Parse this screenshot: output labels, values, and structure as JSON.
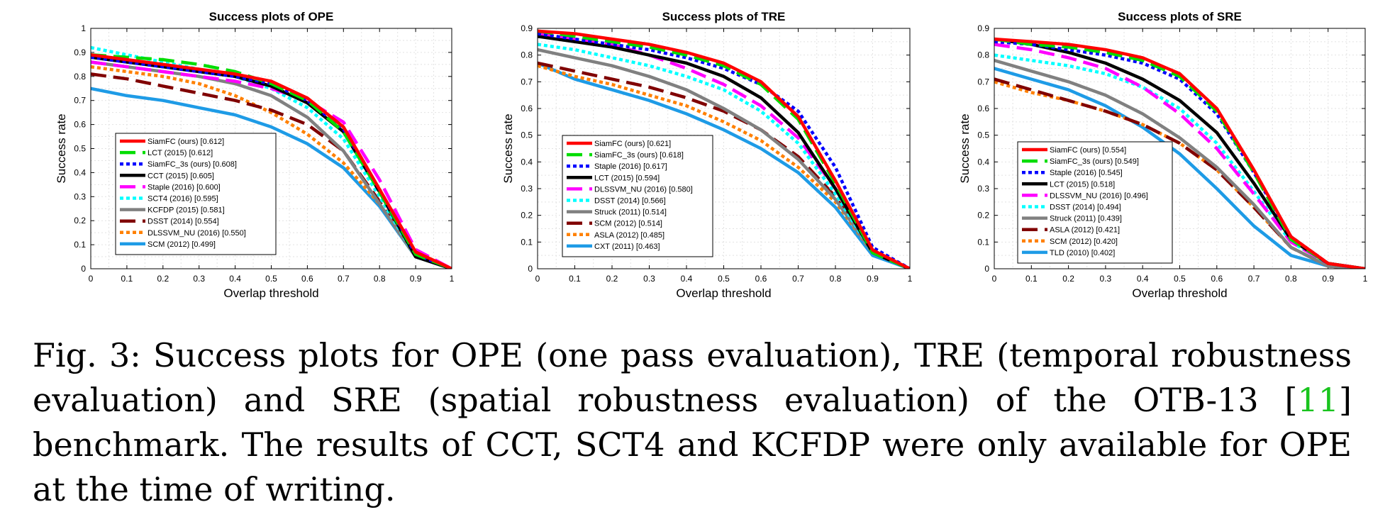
{
  "chart_data": [
    {
      "type": "line",
      "title": "Success plots of OPE",
      "xlabel": "Overlap threshold",
      "ylabel": "Success rate",
      "xlim": [
        0,
        1
      ],
      "ylim": [
        0,
        1
      ],
      "xticks": [
        "0",
        "0.1",
        "0.2",
        "0.3",
        "0.4",
        "0.5",
        "0.6",
        "0.7",
        "0.8",
        "0.9",
        "1"
      ],
      "yticks": [
        "0",
        "0.1",
        "0.2",
        "0.3",
        "0.4",
        "0.5",
        "0.6",
        "0.7",
        "0.8",
        "0.9",
        "1"
      ],
      "grid": true,
      "legend_position": "lower-left",
      "x": [
        0,
        0.1,
        0.2,
        0.3,
        0.4,
        0.5,
        0.6,
        0.7,
        0.8,
        0.9,
        1.0
      ],
      "series": [
        {
          "name": "SiamFC (ours) [0.612]",
          "color": "#ff0000",
          "dash": "solid",
          "values": [
            0.89,
            0.87,
            0.85,
            0.83,
            0.81,
            0.78,
            0.71,
            0.59,
            0.33,
            0.07,
            0.0
          ]
        },
        {
          "name": "LCT (2015) [0.612]",
          "color": "#00dd00",
          "dash": "dashed",
          "values": [
            0.89,
            0.88,
            0.87,
            0.85,
            0.82,
            0.77,
            0.7,
            0.57,
            0.32,
            0.06,
            0.0
          ]
        },
        {
          "name": "SiamFC_3s (ours) [0.608]",
          "color": "#0000ff",
          "dash": "dotted",
          "values": [
            0.88,
            0.86,
            0.84,
            0.82,
            0.8,
            0.77,
            0.7,
            0.58,
            0.33,
            0.06,
            0.0
          ]
        },
        {
          "name": "CCT (2015) [0.605]",
          "color": "#000000",
          "dash": "solid",
          "values": [
            0.88,
            0.86,
            0.84,
            0.82,
            0.8,
            0.76,
            0.69,
            0.57,
            0.32,
            0.05,
            0.0
          ]
        },
        {
          "name": "Staple (2016) [0.600]",
          "color": "#ff00ff",
          "dash": "dashed",
          "values": [
            0.86,
            0.84,
            0.82,
            0.8,
            0.78,
            0.75,
            0.7,
            0.61,
            0.37,
            0.08,
            0.0
          ]
        },
        {
          "name": "SCT4 (2016) [0.595]",
          "color": "#00ffff",
          "dash": "dotted",
          "values": [
            0.92,
            0.89,
            0.86,
            0.83,
            0.8,
            0.75,
            0.67,
            0.54,
            0.3,
            0.05,
            0.0
          ]
        },
        {
          "name": "KCFDP (2015) [0.581]",
          "color": "#808080",
          "dash": "solid",
          "values": [
            0.86,
            0.84,
            0.82,
            0.8,
            0.77,
            0.72,
            0.63,
            0.49,
            0.27,
            0.05,
            0.0
          ]
        },
        {
          "name": "DSST (2014) [0.554]",
          "color": "#800000",
          "dash": "dashed",
          "values": [
            0.81,
            0.79,
            0.76,
            0.73,
            0.7,
            0.66,
            0.6,
            0.49,
            0.28,
            0.05,
            0.0
          ]
        },
        {
          "name": "DLSSVM_NU (2016) [0.550]",
          "color": "#ff8000",
          "dash": "dotted",
          "values": [
            0.84,
            0.82,
            0.8,
            0.77,
            0.72,
            0.65,
            0.56,
            0.44,
            0.27,
            0.05,
            0.0
          ]
        },
        {
          "name": "SCM (2012) [0.499]",
          "color": "#1e9be6",
          "dash": "solid",
          "values": [
            0.75,
            0.72,
            0.7,
            0.67,
            0.64,
            0.59,
            0.52,
            0.42,
            0.26,
            0.05,
            0.0
          ]
        }
      ]
    },
    {
      "type": "line",
      "title": "Success plots of TRE",
      "xlabel": "Overlap threshold",
      "ylabel": "Success rate",
      "xlim": [
        0,
        1
      ],
      "ylim": [
        0,
        0.9
      ],
      "xticks": [
        "0",
        "0.1",
        "0.2",
        "0.3",
        "0.4",
        "0.5",
        "0.6",
        "0.7",
        "0.8",
        "0.9",
        "1"
      ],
      "yticks": [
        "0",
        "0.1",
        "0.2",
        "0.3",
        "0.4",
        "0.5",
        "0.6",
        "0.7",
        "0.8",
        "0.9"
      ],
      "grid": true,
      "legend_position": "lower-left",
      "x": [
        0,
        0.1,
        0.2,
        0.3,
        0.4,
        0.5,
        0.6,
        0.7,
        0.8,
        0.9,
        1.0
      ],
      "series": [
        {
          "name": "SiamFC (ours) [0.621]",
          "color": "#ff0000",
          "dash": "solid",
          "values": [
            0.89,
            0.88,
            0.86,
            0.84,
            0.81,
            0.77,
            0.7,
            0.57,
            0.33,
            0.07,
            0.0
          ]
        },
        {
          "name": "SiamFC_3s (ours) [0.618]",
          "color": "#00dd00",
          "dash": "dashed",
          "values": [
            0.89,
            0.87,
            0.85,
            0.83,
            0.8,
            0.76,
            0.69,
            0.56,
            0.32,
            0.06,
            0.0
          ]
        },
        {
          "name": "Staple (2016) [0.617]",
          "color": "#0000ff",
          "dash": "dotted",
          "values": [
            0.88,
            0.86,
            0.84,
            0.82,
            0.79,
            0.75,
            0.69,
            0.59,
            0.38,
            0.08,
            0.0
          ]
        },
        {
          "name": "LCT (2015) [0.594]",
          "color": "#000000",
          "dash": "solid",
          "values": [
            0.87,
            0.85,
            0.83,
            0.8,
            0.77,
            0.72,
            0.64,
            0.51,
            0.3,
            0.06,
            0.0
          ]
        },
        {
          "name": "DLSSVM_NU (2016) [0.580]",
          "color": "#ff00ff",
          "dash": "dashed",
          "values": [
            0.88,
            0.86,
            0.84,
            0.8,
            0.75,
            0.69,
            0.61,
            0.49,
            0.3,
            0.07,
            0.0
          ]
        },
        {
          "name": "DSST (2014) [0.566]",
          "color": "#00ffff",
          "dash": "dotted",
          "values": [
            0.84,
            0.82,
            0.79,
            0.76,
            0.72,
            0.67,
            0.59,
            0.47,
            0.28,
            0.06,
            0.0
          ]
        },
        {
          "name": "Struck (2011) [0.514]",
          "color": "#808080",
          "dash": "solid",
          "values": [
            0.82,
            0.79,
            0.76,
            0.72,
            0.67,
            0.6,
            0.52,
            0.41,
            0.26,
            0.06,
            0.0
          ]
        },
        {
          "name": "SCM (2012) [0.514]",
          "color": "#800000",
          "dash": "dashed",
          "values": [
            0.77,
            0.74,
            0.71,
            0.68,
            0.64,
            0.59,
            0.52,
            0.42,
            0.27,
            0.06,
            0.0
          ]
        },
        {
          "name": "ASLA (2012) [0.485]",
          "color": "#ff8000",
          "dash": "dotted",
          "values": [
            0.76,
            0.72,
            0.69,
            0.65,
            0.61,
            0.55,
            0.48,
            0.38,
            0.25,
            0.06,
            0.0
          ]
        },
        {
          "name": "CXT (2011) [0.463]",
          "color": "#1e9be6",
          "dash": "solid",
          "values": [
            0.77,
            0.71,
            0.67,
            0.63,
            0.58,
            0.52,
            0.45,
            0.36,
            0.23,
            0.05,
            0.0
          ]
        }
      ]
    },
    {
      "type": "line",
      "title": "Success plots of SRE",
      "xlabel": "Overlap threshold",
      "ylabel": "Success rate",
      "xlim": [
        0,
        1
      ],
      "ylim": [
        0,
        0.9
      ],
      "xticks": [
        "0",
        "0.1",
        "0.2",
        "0.3",
        "0.4",
        "0.5",
        "0.6",
        "0.7",
        "0.8",
        "0.9",
        "1"
      ],
      "yticks": [
        "0",
        "0.1",
        "0.2",
        "0.3",
        "0.4",
        "0.5",
        "0.6",
        "0.7",
        "0.8",
        "0.9"
      ],
      "grid": true,
      "legend_position": "lower-left",
      "x": [
        0,
        0.1,
        0.2,
        0.3,
        0.4,
        0.5,
        0.6,
        0.7,
        0.8,
        0.9,
        1.0
      ],
      "series": [
        {
          "name": "SiamFC (ours) [0.554]",
          "color": "#ff0000",
          "dash": "solid",
          "values": [
            0.86,
            0.85,
            0.84,
            0.82,
            0.79,
            0.73,
            0.6,
            0.37,
            0.12,
            0.02,
            0.0
          ]
        },
        {
          "name": "SiamFC_3s (ours) [0.549]",
          "color": "#00dd00",
          "dash": "dashed",
          "values": [
            0.86,
            0.84,
            0.83,
            0.81,
            0.78,
            0.72,
            0.59,
            0.36,
            0.11,
            0.02,
            0.0
          ]
        },
        {
          "name": "Staple (2016) [0.545]",
          "color": "#0000ff",
          "dash": "dotted",
          "values": [
            0.85,
            0.84,
            0.82,
            0.8,
            0.77,
            0.71,
            0.58,
            0.36,
            0.12,
            0.02,
            0.0
          ]
        },
        {
          "name": "LCT (2015) [0.518]",
          "color": "#000000",
          "dash": "solid",
          "values": [
            0.86,
            0.84,
            0.81,
            0.77,
            0.71,
            0.63,
            0.51,
            0.32,
            0.11,
            0.02,
            0.0
          ]
        },
        {
          "name": "DLSSVM_NU (2016) [0.496]",
          "color": "#ff00ff",
          "dash": "dashed",
          "values": [
            0.84,
            0.82,
            0.79,
            0.75,
            0.68,
            0.58,
            0.45,
            0.28,
            0.1,
            0.02,
            0.0
          ]
        },
        {
          "name": "DSST (2014) [0.494]",
          "color": "#00ffff",
          "dash": "dotted",
          "values": [
            0.8,
            0.78,
            0.76,
            0.73,
            0.68,
            0.6,
            0.47,
            0.29,
            0.1,
            0.02,
            0.0
          ]
        },
        {
          "name": "Struck (2011) [0.439]",
          "color": "#808080",
          "dash": "solid",
          "values": [
            0.78,
            0.74,
            0.7,
            0.65,
            0.58,
            0.49,
            0.38,
            0.24,
            0.08,
            0.01,
            0.0
          ]
        },
        {
          "name": "ASLA (2012) [0.421]",
          "color": "#800000",
          "dash": "dashed",
          "values": [
            0.71,
            0.67,
            0.63,
            0.59,
            0.54,
            0.47,
            0.37,
            0.23,
            0.08,
            0.01,
            0.0
          ]
        },
        {
          "name": "SCM (2012) [0.420]",
          "color": "#ff8000",
          "dash": "dotted",
          "values": [
            0.7,
            0.66,
            0.63,
            0.59,
            0.54,
            0.47,
            0.37,
            0.23,
            0.08,
            0.01,
            0.0
          ]
        },
        {
          "name": "TLD (2010) [0.402]",
          "color": "#1e9be6",
          "dash": "solid",
          "values": [
            0.75,
            0.71,
            0.67,
            0.61,
            0.53,
            0.43,
            0.3,
            0.16,
            0.05,
            0.01,
            0.0
          ]
        }
      ]
    }
  ],
  "caption": {
    "text_before_ref": "Fig. 3: Success plots for OPE (one pass evaluation), TRE (temporal robustness evaluation) and SRE (spatial robustness evaluation) of the OTB-13 [",
    "ref": "11",
    "text_after_ref": "] benchmark. The results of CCT, SCT4 and KCFDP were only available for OPE at the time of writing.",
    "ref_color": "#19c41e"
  }
}
